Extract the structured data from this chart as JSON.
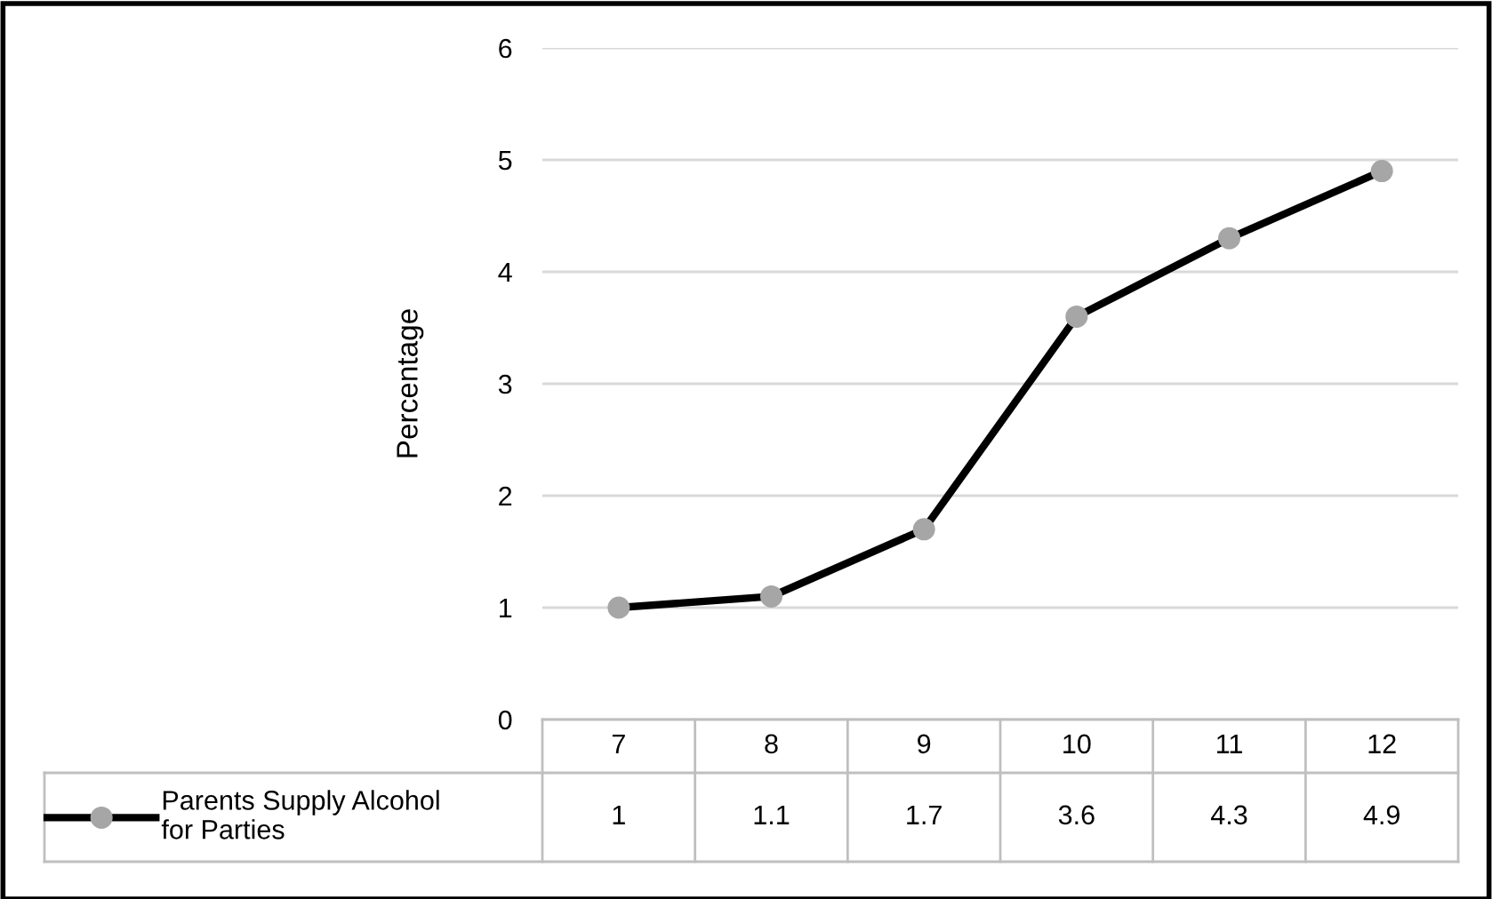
{
  "chart_data": {
    "type": "line",
    "ylabel": "Percentage",
    "categories": [
      "7",
      "8",
      "9",
      "10",
      "11",
      "12"
    ],
    "series": [
      {
        "name": "Parents Supply Alcohol for Parties",
        "color": "#000000",
        "values": [
          1,
          1.1,
          1.7,
          3.6,
          4.3,
          4.9
        ]
      }
    ],
    "ylim": [
      0,
      6
    ],
    "yticks": [
      0,
      1,
      2,
      3,
      4,
      5,
      6
    ],
    "grid": "y",
    "marker": "circle",
    "line_style": "solid",
    "data_labels": true,
    "legend": "bottom"
  }
}
